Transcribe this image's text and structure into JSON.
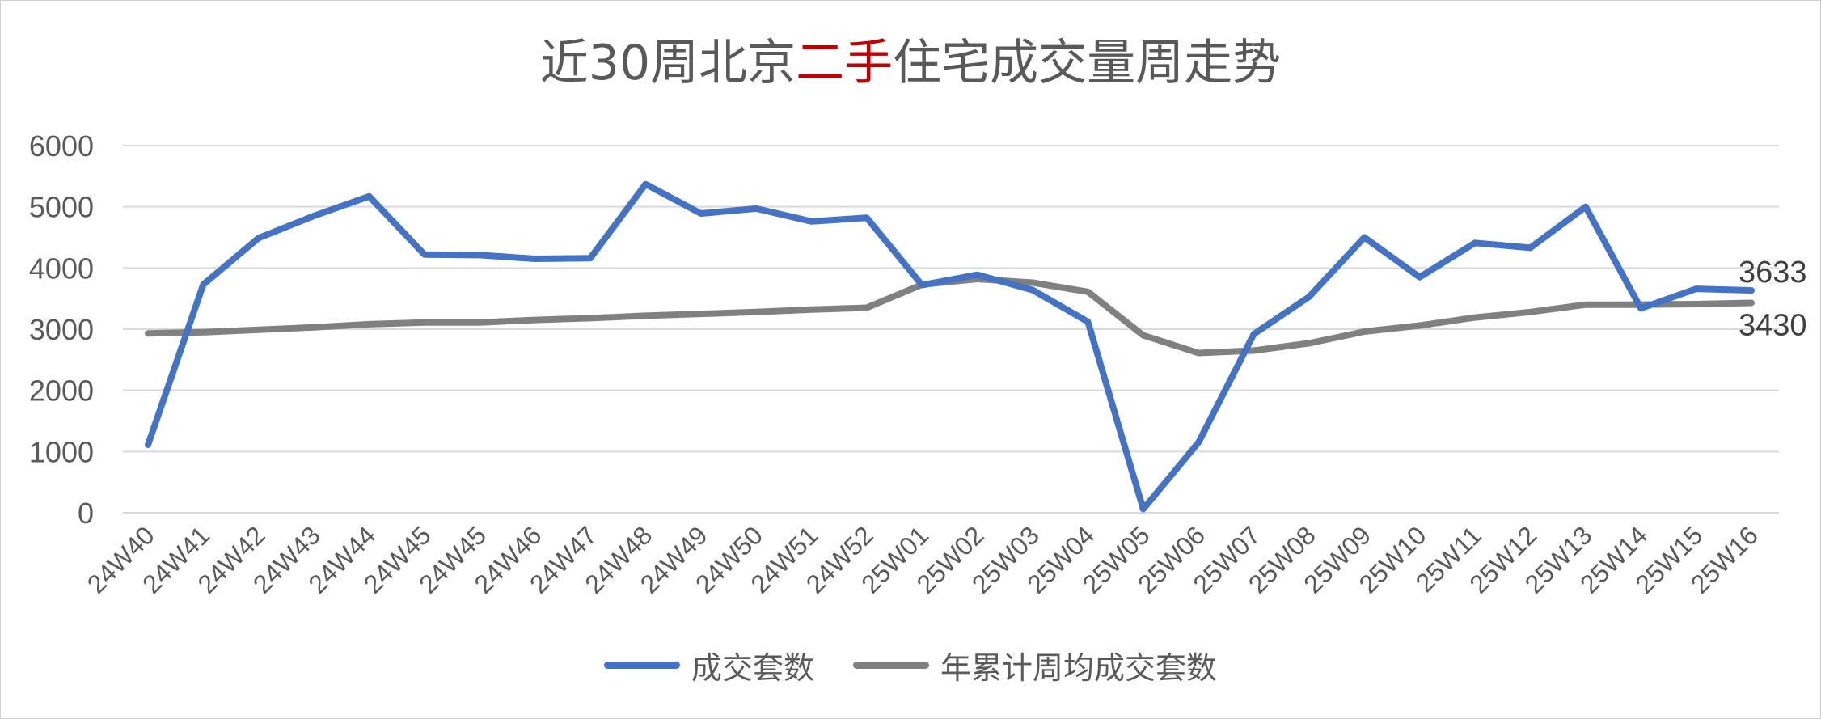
{
  "title_parts": {
    "pre": "近30周北京",
    "highlight": "二手",
    "post": "住宅成交量周走势"
  },
  "colors": {
    "primary": "#4472c4",
    "secondary": "#808080",
    "highlight": "#c00000",
    "grid": "#d9d9d9",
    "text": "#595959"
  },
  "chart_data": {
    "type": "line",
    "title": "近30周北京二手住宅成交量周走势",
    "categories": [
      "24W40",
      "24W41",
      "24W42",
      "24W43",
      "24W44",
      "24W45",
      "24W45",
      "24W46",
      "24W47",
      "24W48",
      "24W49",
      "24W50",
      "24W51",
      "24W52",
      "25W01",
      "25W02",
      "25W03",
      "25W04",
      "25W05",
      "25W06",
      "25W07",
      "25W08",
      "25W09",
      "25W10",
      "25W11",
      "25W12",
      "25W13",
      "25W14",
      "25W15",
      "25W16"
    ],
    "series": [
      {
        "name": "成交套数",
        "color": "#4472c4",
        "values": [
          1110,
          3730,
          4490,
          4850,
          5170,
          4220,
          4210,
          4150,
          4160,
          5370,
          4890,
          4970,
          4760,
          4820,
          3720,
          3890,
          3640,
          3120,
          60,
          1150,
          2920,
          3530,
          4500,
          3850,
          4410,
          4330,
          5000,
          3340,
          3660,
          3633
        ]
      },
      {
        "name": "年累计周均成交套数",
        "color": "#808080",
        "values": [
          2930,
          2950,
          2990,
          3030,
          3080,
          3110,
          3110,
          3150,
          3180,
          3220,
          3250,
          3280,
          3320,
          3350,
          3730,
          3820,
          3760,
          3610,
          2900,
          2610,
          2650,
          2770,
          2960,
          3060,
          3190,
          3280,
          3400,
          3400,
          3410,
          3430
        ]
      }
    ],
    "ylim": [
      0,
      6000
    ],
    "yticks": [
      0,
      1000,
      2000,
      3000,
      4000,
      5000,
      6000
    ],
    "grid": true,
    "legend_position": "bottom",
    "end_labels": [
      "3633",
      "3430"
    ]
  },
  "legend": [
    {
      "label": "成交套数",
      "color": "#4472c4"
    },
    {
      "label": "年累计周均成交套数",
      "color": "#808080"
    }
  ]
}
